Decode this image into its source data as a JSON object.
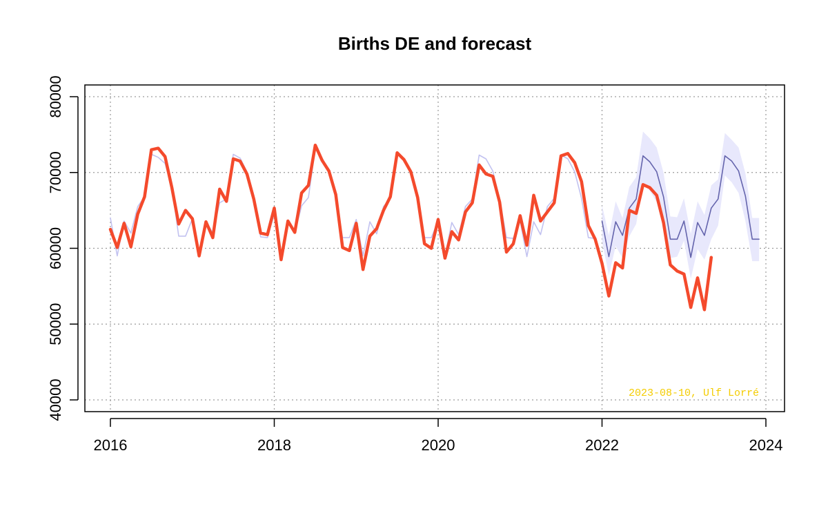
{
  "chart_data": {
    "type": "line",
    "title": "Births DE and forecast",
    "xlabel": "",
    "ylabel": "",
    "xlim": [
      2016,
      2024
    ],
    "ylim": [
      40000,
      80000
    ],
    "x_ticks": [
      "2016",
      "2018",
      "2020",
      "2022",
      "2024"
    ],
    "y_ticks": [
      "40000",
      "50000",
      "60000",
      "70000",
      "80000"
    ],
    "grid": true,
    "grid_style": "dotted",
    "colors": {
      "observed": "#f44a2c",
      "fitted": "#c2c2f0",
      "forecast": "#6464ac",
      "forecast_band": "#e8e8fc",
      "credit": "#f4cc00"
    },
    "annotation": "2023-08-10, Ulf Lorré",
    "observed_start": "2016-01",
    "observed": [
      62500,
      60100,
      63300,
      60200,
      64500,
      66800,
      73000,
      73200,
      72100,
      68000,
      63200,
      65000,
      63900,
      59000,
      63500,
      61400,
      67800,
      66200,
      71800,
      71500,
      69800,
      66500,
      62000,
      61800,
      65300,
      58500,
      63600,
      62100,
      67300,
      68300,
      73600,
      71600,
      70200,
      67100,
      60100,
      59700,
      63300,
      57200,
      61600,
      62600,
      65000,
      66800,
      72600,
      71700,
      70100,
      66700,
      60600,
      60000,
      63800,
      58700,
      62200,
      61100,
      64800,
      66000,
      71000,
      69800,
      69500,
      66100,
      59500,
      60600,
      64300,
      60400,
      67000,
      63600,
      64800,
      66000,
      72200,
      72500,
      71300,
      68800,
      63000,
      61200,
      58000,
      53700,
      58100,
      57400,
      65000,
      64600,
      68400,
      68000,
      67000,
      63400,
      57800,
      57000,
      56600,
      52200,
      56100,
      51900,
      58800
    ],
    "fitted_start": "2016-01",
    "fitted": [
      64000,
      59000,
      63600,
      62000,
      65500,
      66800,
      72400,
      72000,
      71200,
      68000,
      61600,
      61600,
      63900,
      59000,
      63600,
      62000,
      66000,
      66500,
      72400,
      71900,
      70100,
      67000,
      61500,
      61400,
      64500,
      59000,
      63600,
      62000,
      65600,
      66700,
      73200,
      71900,
      70200,
      67000,
      61400,
      61400,
      63800,
      59000,
      63500,
      61900,
      65500,
      66600,
      72400,
      71900,
      70200,
      67000,
      61400,
      61400,
      63600,
      59000,
      63400,
      61800,
      65500,
      66500,
      72300,
      71800,
      70200,
      66500,
      61400,
      61300,
      63600,
      58900,
      63500,
      61800,
      65500,
      66600,
      72300,
      71800,
      70100,
      66600,
      61400,
      61300
    ],
    "forecast_start": "2022-01",
    "forecast": [
      63600,
      58900,
      63500,
      61700,
      65300,
      66500,
      72200,
      71400,
      70100,
      66800,
      61200,
      61200,
      63600,
      58800,
      63400,
      61700,
      65300,
      66500,
      72200,
      71500,
      70200,
      66900,
      61200,
      61200
    ],
    "forecast_lo": [
      60900,
      56400,
      60300,
      58700,
      61600,
      63200,
      68400,
      67600,
      66100,
      62800,
      58700,
      58900,
      61000,
      56000,
      59900,
      58500,
      61200,
      63000,
      69600,
      68700,
      67300,
      63600,
      58300,
      58300
    ],
    "forecast_hi": [
      65700,
      61700,
      66200,
      64000,
      68100,
      69400,
      75400,
      74500,
      73300,
      70000,
      64200,
      64100,
      66600,
      61900,
      66200,
      64400,
      68300,
      69100,
      75200,
      74300,
      73300,
      69900,
      64000,
      64000
    ]
  }
}
